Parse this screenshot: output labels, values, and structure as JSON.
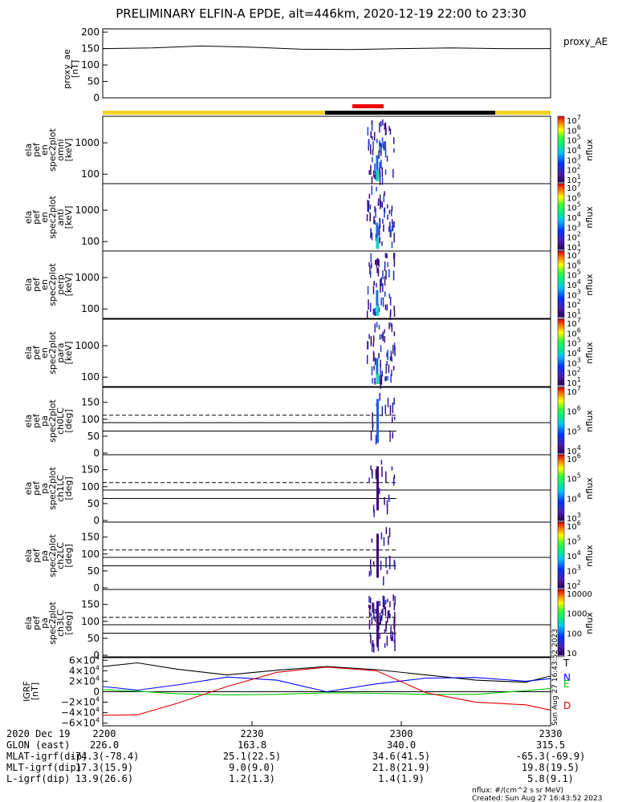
{
  "title": "PRELIMINARY ELFIN-A EPDE, alt=446km, 2020-12-19 22:00 to 23:30",
  "top_panel": {
    "ylabel": [
      "proxy_ae",
      "[nT]"
    ],
    "legend": "proxy_AE",
    "yticks": [
      "200",
      "150",
      "100",
      "50",
      "0"
    ]
  },
  "spec_panels": [
    {
      "ylabel": [
        "ela",
        "pef",
        "en",
        "spec2plot",
        "omni",
        "[keV]"
      ]
    },
    {
      "ylabel": [
        "ela",
        "pef",
        "en",
        "spec2plot",
        "anti",
        "[keV]"
      ]
    },
    {
      "ylabel": [
        "ela",
        "pef",
        "en",
        "spec2plot",
        "perp",
        "[keV]"
      ]
    },
    {
      "ylabel": [
        "ela",
        "pef",
        "en",
        "spec2plot",
        "para",
        "[keV]"
      ]
    }
  ],
  "spec_yticks": [
    "1000",
    "100"
  ],
  "pa_panels": [
    {
      "ylabel": [
        "ela",
        "pef",
        "pa",
        "spec2plot",
        "ch0LC",
        "[deg]"
      ]
    },
    {
      "ylabel": [
        "ela",
        "pef",
        "pa",
        "spec2plot",
        "ch1LC",
        "[deg]"
      ]
    },
    {
      "ylabel": [
        "ela",
        "pef",
        "pa",
        "spec2plot",
        "ch2LC",
        "[deg]"
      ]
    },
    {
      "ylabel": [
        "ela",
        "pef",
        "pa",
        "spec2plot",
        "ch3LC",
        "[deg]"
      ]
    }
  ],
  "pa_yticks": [
    "150",
    "100",
    "50",
    "0"
  ],
  "colorbars": [
    {
      "unit": "nflux",
      "labels": [
        "10^7",
        "10^6",
        "10^5",
        "10^4",
        "10^3",
        "10^2",
        "10^1"
      ]
    },
    {
      "unit": "nflux",
      "labels": [
        "10^7",
        "10^6",
        "10^5",
        "10^4",
        "10^3",
        "10^2",
        "10^1"
      ]
    },
    {
      "unit": "nflux",
      "labels": [
        "10^7",
        "10^6",
        "10^5",
        "10^4",
        "10^3",
        "10^2",
        "10^1"
      ]
    },
    {
      "unit": "nflux",
      "labels": [
        "10^7",
        "10^6",
        "10^5",
        "10^4",
        "10^3",
        "10^2",
        "10^1"
      ]
    },
    {
      "unit": "nflux",
      "labels": [
        "10^7",
        "10^6",
        "10^5",
        "10^4"
      ]
    },
    {
      "unit": "nflux",
      "labels": [
        "10^6",
        "10^5",
        "10^4",
        "10^3"
      ]
    },
    {
      "unit": "nflux",
      "labels": [
        "10^6",
        "10^5",
        "10^4",
        "10^3",
        "10^2"
      ]
    },
    {
      "unit": "nflux",
      "labels": [
        "10000",
        "1000",
        "100",
        "10"
      ]
    }
  ],
  "igrf_panel": {
    "ylabel": [
      "IGRF",
      "[nT]"
    ],
    "yticks": [
      "6×10^4",
      "4×10^4",
      "2×10^4",
      "0",
      "−2×10^4",
      "−4×10^4",
      "−6×10^4"
    ],
    "legend": [
      {
        "name": "T",
        "color": "#000000"
      },
      {
        "name": "N",
        "color": "#0000ff"
      },
      {
        "name": "E",
        "color": "#00c800"
      },
      {
        "name": "D",
        "color": "#e00000"
      }
    ],
    "side_note": "Sun Aug 27 16:43:52 2023"
  },
  "footer": {
    "rows": [
      {
        "label": "2020 Dec 19",
        "vals": [
          "2200",
          "2230",
          "2300",
          "2330"
        ]
      },
      {
        "label": "GLON (east)",
        "vals": [
          "226.0",
          "163.8",
          "340.0",
          "315.5"
        ]
      },
      {
        "label": "MLAT-igrf(dip)",
        "vals": [
          "-74.3(-78.4)",
          "25.1(22.5)",
          "34.6(41.5)",
          "-65.3(-69.9)"
        ]
      },
      {
        "label": "MLT-igrf(dip)",
        "vals": [
          "17.3(15.9)",
          "9.0(9.0)",
          "21.8(21.9)",
          "19.8(19.5)"
        ]
      },
      {
        "label": "L-igrf(dip)",
        "vals": [
          "13.9(26.6)",
          "1.2(1.3)",
          "1.4(1.9)",
          "5.8(9.1)"
        ]
      }
    ],
    "units_note": "nflux: #/(cm^2 s sr MeV)",
    "created": "Created: Sun Aug 27 16:43:52 2023"
  },
  "colors": {
    "day_bar": "#f2d21c",
    "night_bar": "#000000",
    "science_bar": "#ee0000",
    "threshold_line": "#000000"
  },
  "chart_data": [
    {
      "type": "line",
      "title": "PRELIMINARY ELFIN-A EPDE, alt=446km, 2020-12-19 22:00 to 23:30",
      "ylabel": "proxy_ae [nT]",
      "ylim": [
        0,
        210
      ],
      "x_minutes": [
        0,
        10,
        20,
        30,
        40,
        50,
        60,
        70,
        80,
        90
      ],
      "series": [
        {
          "name": "proxy_AE",
          "values": [
            150,
            152,
            158,
            154,
            148,
            147,
            150,
            152,
            150,
            150
          ]
        }
      ]
    },
    {
      "type": "heatmap",
      "panels": [
        "omni",
        "anti",
        "perp",
        "para"
      ],
      "ylabel": "ela pef en spec2plot [keV]",
      "ylog": true,
      "ylim_keV": [
        50,
        7000
      ],
      "active_interval_minutes": [
        54,
        58
      ],
      "colorbar": {
        "label": "nflux",
        "log_range": [
          1,
          7
        ]
      }
    },
    {
      "type": "heatmap",
      "panels": [
        "ch0LC",
        "ch1LC",
        "ch2LC",
        "ch3LC"
      ],
      "ylabel": "ela pef pa spec2plot [deg]",
      "ylim": [
        0,
        180
      ],
      "reference_lines_deg": [
        65,
        90,
        112
      ],
      "active_interval_minutes": [
        54,
        58
      ]
    },
    {
      "type": "line",
      "ylabel": "IGRF [nT]",
      "ylim": [
        -65000,
        65000
      ],
      "x_minutes": [
        0,
        7,
        15,
        25,
        35,
        45,
        55,
        65,
        75,
        85,
        90
      ],
      "series": [
        {
          "name": "T",
          "values": [
            48000,
            55000,
            43000,
            32000,
            41000,
            48000,
            42000,
            32000,
            22000,
            18000,
            30000
          ]
        },
        {
          "name": "N",
          "values": [
            10000,
            3000,
            13000,
            28000,
            22000,
            0,
            15000,
            26000,
            27000,
            20000,
            25000
          ]
        },
        {
          "name": "E",
          "values": [
            4000,
            1000,
            -4000,
            -6000,
            -5000,
            -2000,
            -3000,
            -5000,
            -5000,
            2000,
            6000
          ]
        },
        {
          "name": "D",
          "values": [
            -45000,
            -44000,
            -22000,
            10000,
            37000,
            47000,
            40000,
            -2000,
            -20000,
            -25000,
            -35000
          ]
        }
      ]
    }
  ]
}
